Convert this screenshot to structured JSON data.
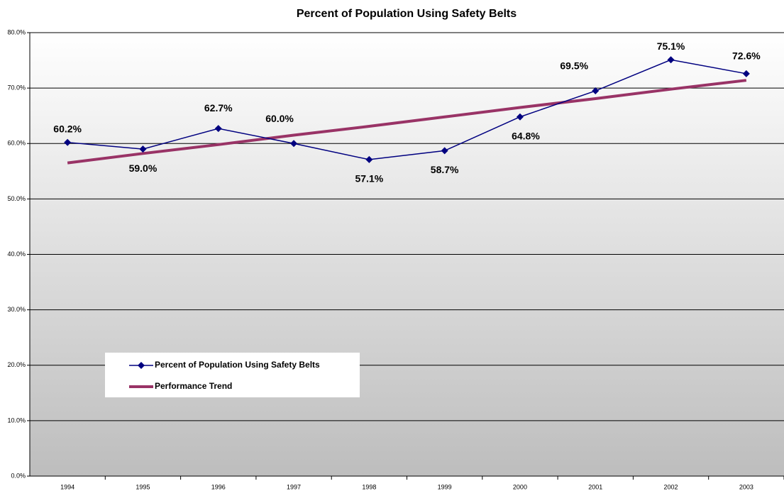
{
  "chart_data": {
    "type": "line",
    "title": "Percent of Population Using Safety Belts",
    "categories": [
      "1994",
      "1995",
      "1996",
      "1997",
      "1998",
      "1999",
      "2000",
      "2001",
      "2002",
      "2003"
    ],
    "series": [
      {
        "name": "Percent of Population Using Safety Belts",
        "color": "#000080",
        "values": [
          60.2,
          59.0,
          62.7,
          60.0,
          57.1,
          58.7,
          64.8,
          69.5,
          75.1,
          72.6
        ],
        "value_labels": [
          "60.2%",
          "59.0%",
          "62.7%",
          "60.0%",
          "57.1%",
          "58.7%",
          "64.8%",
          "69.5%",
          "75.1%",
          "72.6%"
        ]
      },
      {
        "name": "Performance Trend",
        "color": "#993366",
        "values": [
          56.5,
          58.2,
          59.8,
          61.5,
          63.1,
          64.8,
          66.5,
          68.1,
          69.8,
          71.4
        ]
      }
    ],
    "ylim": [
      0,
      80
    ],
    "yticks": [
      {
        "value": 0,
        "label": "0.0%"
      },
      {
        "value": 10,
        "label": "10.0%"
      },
      {
        "value": 20,
        "label": "20.0%"
      },
      {
        "value": 30,
        "label": "30.0%"
      },
      {
        "value": 40,
        "label": "40.0%"
      },
      {
        "value": 50,
        "label": "50.0%"
      },
      {
        "value": 60,
        "label": "60.0%"
      },
      {
        "value": 70,
        "label": "70.0%"
      },
      {
        "value": 80,
        "label": "80.0%"
      }
    ],
    "grid": true
  }
}
